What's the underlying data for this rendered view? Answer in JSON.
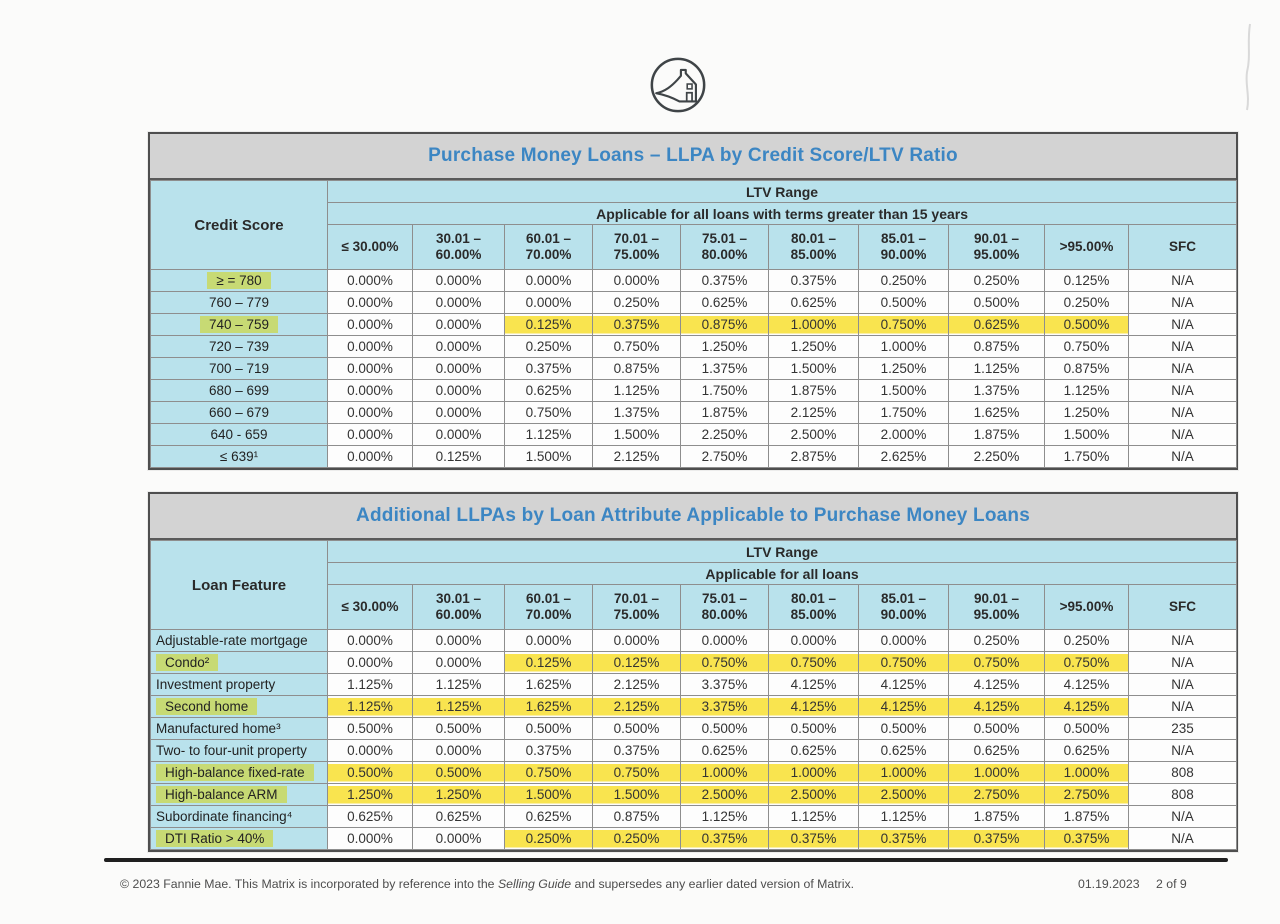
{
  "colors": {
    "title_blue": "#3c86c3",
    "header_blue": "#b9e2ec",
    "highlight_yellow": "#f9e44f",
    "highlight_green": "#c7da74",
    "title_band_gray": "#d3d3d3"
  },
  "logo": {
    "name": "fannie-mae-house-logo"
  },
  "table1": {
    "title": "Purchase Money Loans – LLPA by Credit Score/LTV Ratio",
    "corner_label": "Credit Score",
    "ltv_range_label": "LTV Range",
    "applicability": "Applicable for all loans with terms greater than 15 years",
    "columns": [
      "≤ 30.00%",
      "30.01 –\n60.00%",
      "60.01 –\n70.00%",
      "70.01 –\n75.00%",
      "75.01 –\n80.00%",
      "80.01 –\n85.00%",
      "85.01 –\n90.00%",
      "90.01 –\n95.00%",
      ">95.00%",
      "SFC"
    ],
    "rows": [
      {
        "label": "≥ = 780",
        "label_highlight": true,
        "values": [
          "0.000%",
          "0.000%",
          "0.000%",
          "0.000%",
          "0.375%",
          "0.375%",
          "0.250%",
          "0.250%",
          "0.125%",
          "N/A"
        ]
      },
      {
        "label": "760 – 779",
        "values": [
          "0.000%",
          "0.000%",
          "0.000%",
          "0.250%",
          "0.625%",
          "0.625%",
          "0.500%",
          "0.500%",
          "0.250%",
          "N/A"
        ]
      },
      {
        "label": "740 – 759",
        "label_highlight": true,
        "values": [
          "0.000%",
          "0.000%",
          "0.125%",
          "0.375%",
          "0.875%",
          "1.000%",
          "0.750%",
          "0.625%",
          "0.500%",
          "N/A"
        ],
        "yellow": [
          2,
          3,
          4,
          5,
          6,
          7,
          8
        ]
      },
      {
        "label": "720 – 739",
        "values": [
          "0.000%",
          "0.000%",
          "0.250%",
          "0.750%",
          "1.250%",
          "1.250%",
          "1.000%",
          "0.875%",
          "0.750%",
          "N/A"
        ]
      },
      {
        "label": "700 – 719",
        "values": [
          "0.000%",
          "0.000%",
          "0.375%",
          "0.875%",
          "1.375%",
          "1.500%",
          "1.250%",
          "1.125%",
          "0.875%",
          "N/A"
        ]
      },
      {
        "label": "680 – 699",
        "values": [
          "0.000%",
          "0.000%",
          "0.625%",
          "1.125%",
          "1.750%",
          "1.875%",
          "1.500%",
          "1.375%",
          "1.125%",
          "N/A"
        ]
      },
      {
        "label": "660 – 679",
        "values": [
          "0.000%",
          "0.000%",
          "0.750%",
          "1.375%",
          "1.875%",
          "2.125%",
          "1.750%",
          "1.625%",
          "1.250%",
          "N/A"
        ]
      },
      {
        "label": "640 - 659",
        "values": [
          "0.000%",
          "0.000%",
          "1.125%",
          "1.500%",
          "2.250%",
          "2.500%",
          "2.000%",
          "1.875%",
          "1.500%",
          "N/A"
        ]
      },
      {
        "label": "≤ 639¹",
        "values": [
          "0.000%",
          "0.125%",
          "1.500%",
          "2.125%",
          "2.750%",
          "2.875%",
          "2.625%",
          "2.250%",
          "1.750%",
          "N/A"
        ]
      }
    ]
  },
  "table2": {
    "title": "Additional LLPAs by Loan Attribute Applicable to Purchase Money Loans",
    "corner_label": "Loan Feature",
    "ltv_range_label": "LTV Range",
    "applicability": "Applicable for all loans",
    "columns": [
      "≤ 30.00%",
      "30.01 –\n60.00%",
      "60.01 –\n70.00%",
      "70.01 –\n75.00%",
      "75.01 –\n80.00%",
      "80.01 –\n85.00%",
      "85.01 –\n90.00%",
      "90.01 –\n95.00%",
      ">95.00%",
      "SFC"
    ],
    "rows": [
      {
        "label": "Adjustable-rate mortgage",
        "values": [
          "0.000%",
          "0.000%",
          "0.000%",
          "0.000%",
          "0.000%",
          "0.000%",
          "0.000%",
          "0.250%",
          "0.250%",
          "N/A"
        ]
      },
      {
        "label": "Condo²",
        "label_highlight": true,
        "values": [
          "0.000%",
          "0.000%",
          "0.125%",
          "0.125%",
          "0.750%",
          "0.750%",
          "0.750%",
          "0.750%",
          "0.750%",
          "N/A"
        ],
        "yellow": [
          2,
          3,
          4,
          5,
          6,
          7,
          8
        ]
      },
      {
        "label": "Investment property",
        "values": [
          "1.125%",
          "1.125%",
          "1.625%",
          "2.125%",
          "3.375%",
          "4.125%",
          "4.125%",
          "4.125%",
          "4.125%",
          "N/A"
        ]
      },
      {
        "label": "Second home",
        "label_highlight": true,
        "values": [
          "1.125%",
          "1.125%",
          "1.625%",
          "2.125%",
          "3.375%",
          "4.125%",
          "4.125%",
          "4.125%",
          "4.125%",
          "N/A"
        ],
        "yellow": [
          0,
          1,
          2,
          3,
          4,
          5,
          6,
          7,
          8
        ]
      },
      {
        "label": "Manufactured home³",
        "values": [
          "0.500%",
          "0.500%",
          "0.500%",
          "0.500%",
          "0.500%",
          "0.500%",
          "0.500%",
          "0.500%",
          "0.500%",
          "235"
        ]
      },
      {
        "label": "Two- to four-unit property",
        "values": [
          "0.000%",
          "0.000%",
          "0.375%",
          "0.375%",
          "0.625%",
          "0.625%",
          "0.625%",
          "0.625%",
          "0.625%",
          "N/A"
        ]
      },
      {
        "label": "High-balance fixed-rate",
        "label_highlight": true,
        "values": [
          "0.500%",
          "0.500%",
          "0.750%",
          "0.750%",
          "1.000%",
          "1.000%",
          "1.000%",
          "1.000%",
          "1.000%",
          "808"
        ],
        "yellow": [
          0,
          1,
          2,
          3,
          4,
          5,
          6,
          7,
          8
        ]
      },
      {
        "label": "High-balance ARM",
        "label_highlight": true,
        "values": [
          "1.250%",
          "1.250%",
          "1.500%",
          "1.500%",
          "2.500%",
          "2.500%",
          "2.500%",
          "2.750%",
          "2.750%",
          "808"
        ],
        "yellow": [
          0,
          1,
          2,
          3,
          4,
          5,
          6,
          7,
          8
        ]
      },
      {
        "label": "Subordinate financing⁴",
        "values": [
          "0.625%",
          "0.625%",
          "0.625%",
          "0.875%",
          "1.125%",
          "1.125%",
          "1.125%",
          "1.875%",
          "1.875%",
          "N/A"
        ]
      },
      {
        "label": "DTI Ratio > 40%",
        "label_highlight": true,
        "values": [
          "0.000%",
          "0.000%",
          "0.250%",
          "0.250%",
          "0.375%",
          "0.375%",
          "0.375%",
          "0.375%",
          "0.375%",
          "N/A"
        ],
        "yellow": [
          2,
          3,
          4,
          5,
          6,
          7,
          8
        ]
      }
    ]
  },
  "footer": {
    "copyright_pre": "© 2023 Fannie Mae. This Matrix is incorporated by reference into the ",
    "copyright_italic": "Selling Guide",
    "copyright_post": " and supersedes any earlier dated version of Matrix.",
    "date": "01.19.2023",
    "page": "2 of 9"
  }
}
